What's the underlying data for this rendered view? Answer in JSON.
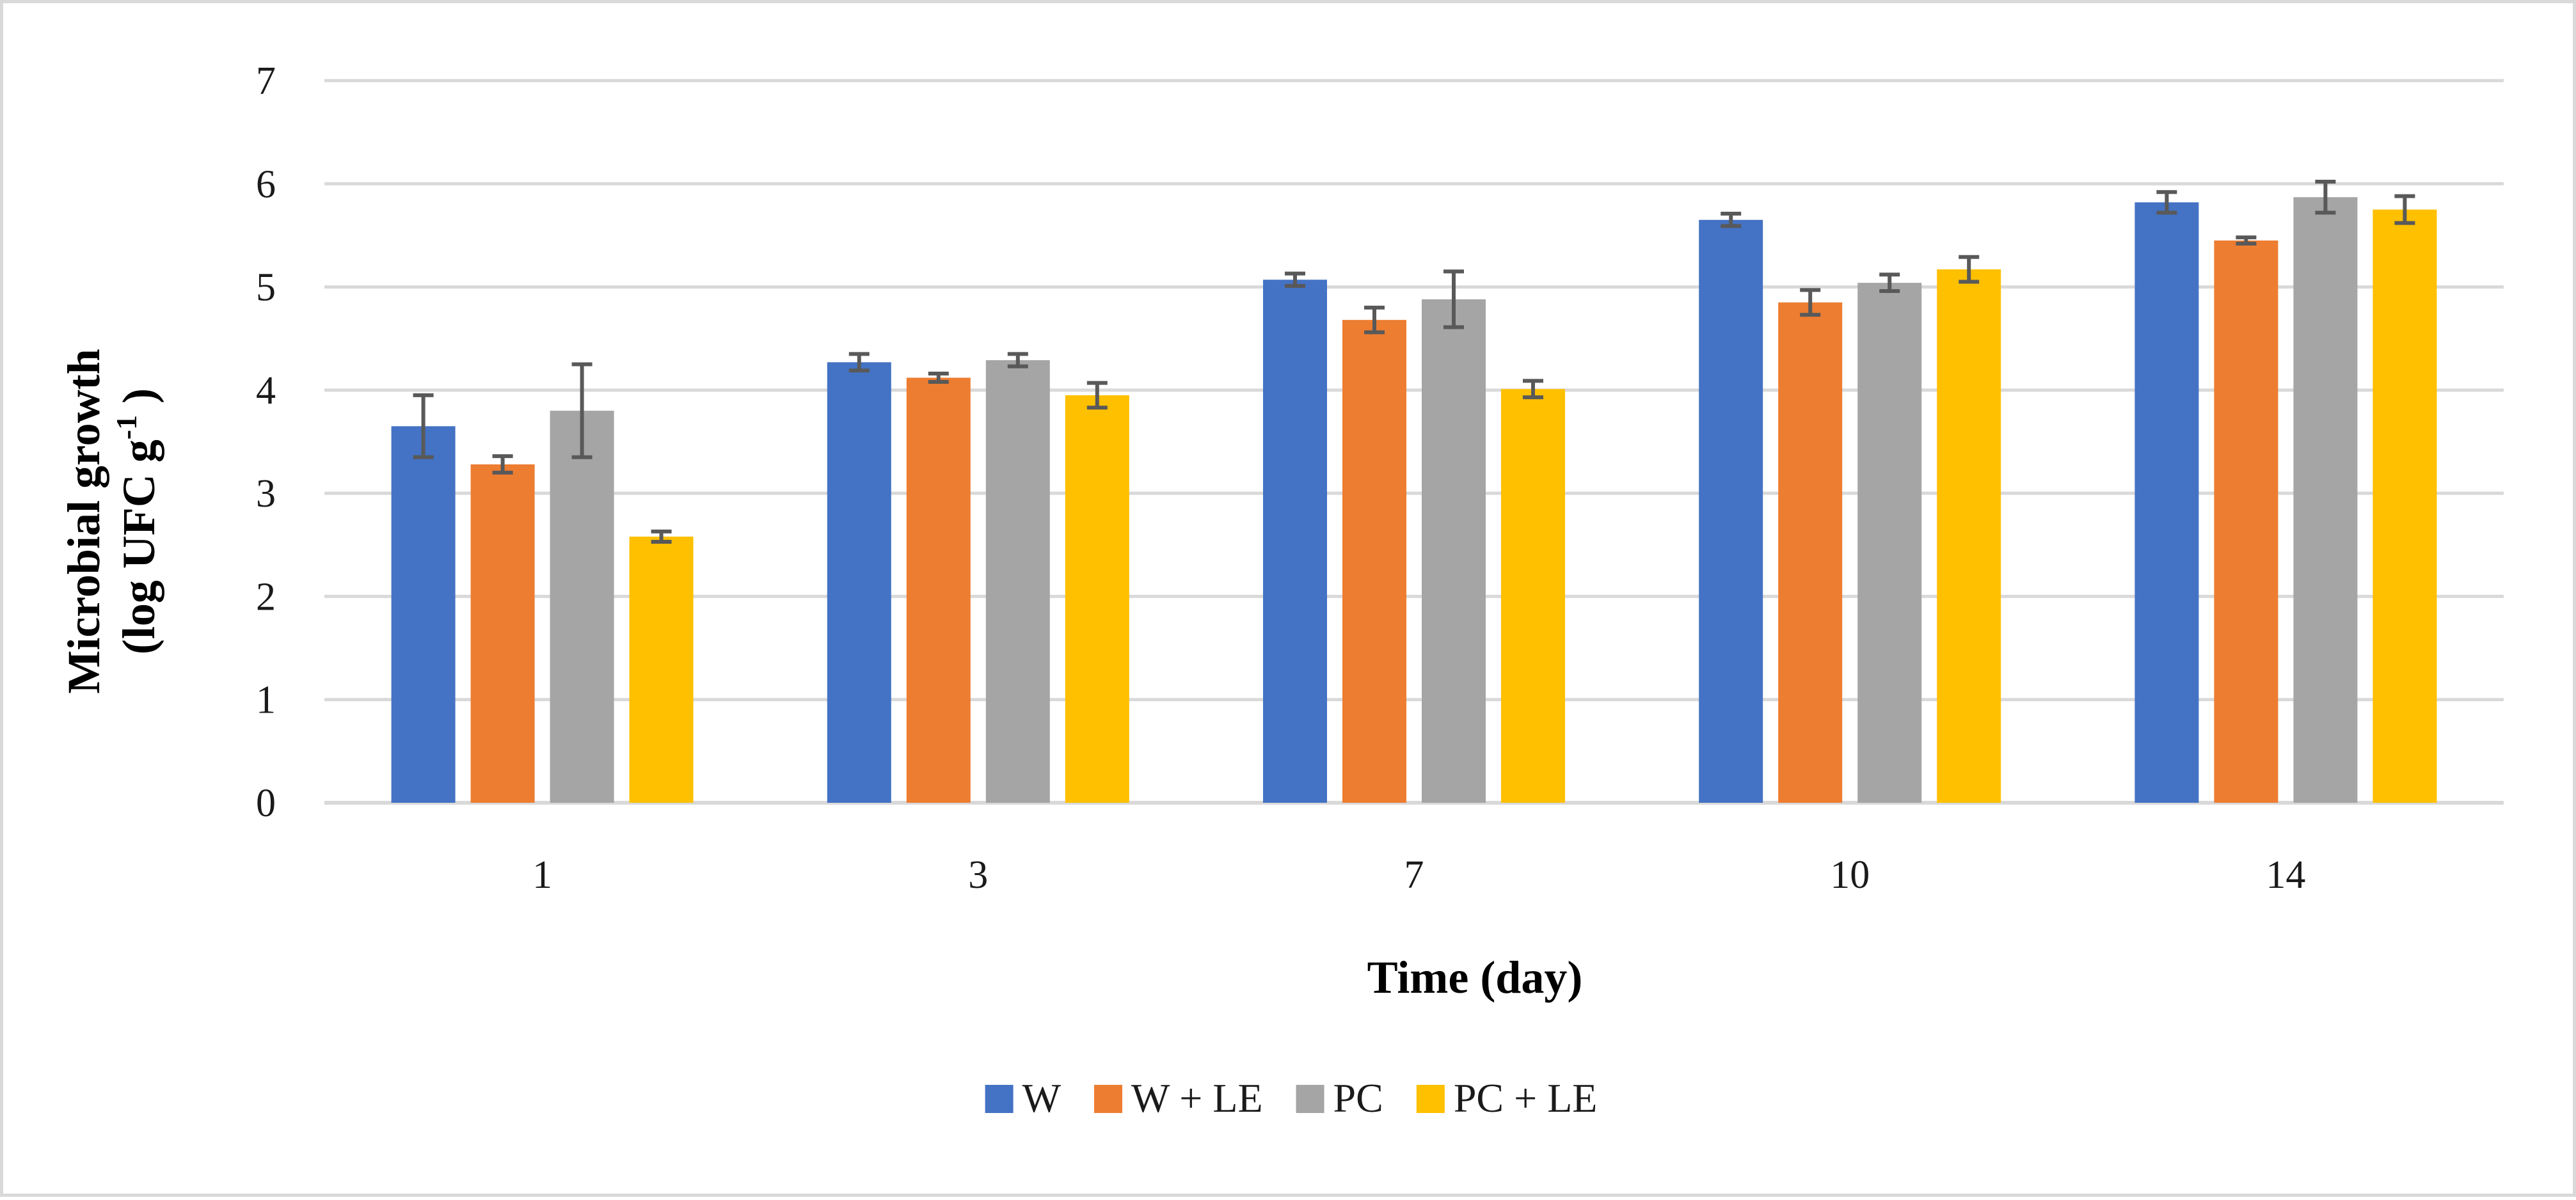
{
  "chart_data": {
    "type": "bar",
    "title": "",
    "xlabel": "Time (day)",
    "ylabel_line1": "Microbial growth",
    "ylabel_line2_pre": "(log UFC g",
    "ylabel_line2_sup": "-1",
    "ylabel_line2_post": " )",
    "categories": [
      "1",
      "3",
      "7",
      "10",
      "14"
    ],
    "ylim": [
      0,
      7
    ],
    "yticks": [
      0,
      1,
      2,
      3,
      4,
      5,
      6,
      7
    ],
    "grid": true,
    "legend_position": "bottom",
    "series": [
      {
        "name": "W",
        "color": "#4472c4",
        "values": [
          3.65,
          4.27,
          5.07,
          5.65,
          5.82
        ],
        "errors": [
          0.3,
          0.08,
          0.06,
          0.06,
          0.1
        ]
      },
      {
        "name": "W + LE",
        "color": "#ed7d31",
        "values": [
          3.28,
          4.12,
          4.68,
          4.85,
          5.45
        ],
        "errors": [
          0.08,
          0.04,
          0.12,
          0.12,
          0.03
        ]
      },
      {
        "name": "PC",
        "color": "#a5a5a5",
        "values": [
          3.8,
          4.29,
          4.88,
          5.04,
          5.87
        ],
        "errors": [
          0.45,
          0.06,
          0.27,
          0.08,
          0.15
        ]
      },
      {
        "name": "PC + LE",
        "color": "#ffc000",
        "values": [
          2.58,
          3.95,
          4.01,
          5.17,
          5.75
        ],
        "errors": [
          0.05,
          0.12,
          0.08,
          0.12,
          0.13
        ]
      }
    ]
  },
  "colors": {
    "grid": "#d9d9d9",
    "axis": "#d9d9d9",
    "error_bar": "#595959",
    "border": "#d9d9d9"
  }
}
